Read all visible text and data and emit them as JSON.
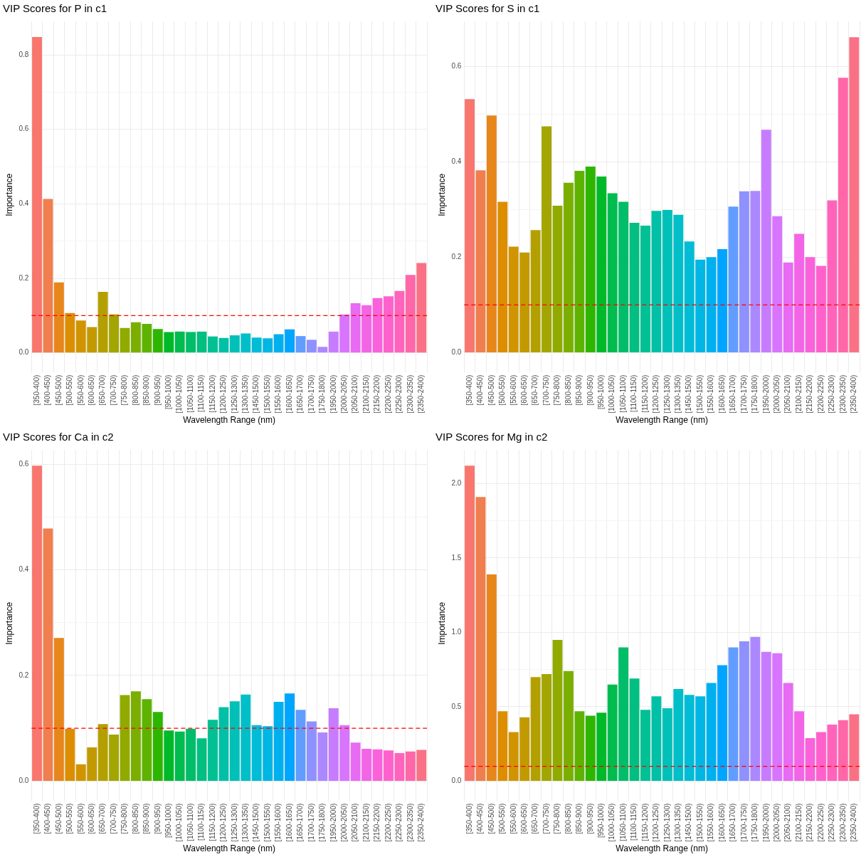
{
  "chart_data": [
    {
      "type": "bar",
      "title": "VIP Scores for P in c1",
      "xlabel": "Wavelength Range (nm)",
      "ylabel": "Importance",
      "categories": [
        "[350-400)",
        "[400-450)",
        "[450-500)",
        "[500-550)",
        "[550-600)",
        "[600-650)",
        "[650-700)",
        "[700-750)",
        "[750-800)",
        "[800-850)",
        "[850-900)",
        "[900-950)",
        "[950-1000)",
        "[1000-1050)",
        "[1050-1100)",
        "[1100-1150)",
        "[1150-1200)",
        "[1200-1250)",
        "[1250-1300)",
        "[1300-1350)",
        "[1450-1500)",
        "[1500-1550)",
        "[1550-1600)",
        "[1600-1650)",
        "[1650-1700)",
        "[1700-1750)",
        "[1750-1800)",
        "[1950-2000)",
        "[2000-2050)",
        "[2050-2100)",
        "[2100-2150)",
        "[2150-2200)",
        "[2200-2250)",
        "[2250-2300)",
        "[2300-2350)",
        "[2350-2400)"
      ],
      "values": [
        0.848,
        0.413,
        0.189,
        0.107,
        0.087,
        0.069,
        0.164,
        0.103,
        0.067,
        0.082,
        0.078,
        0.064,
        0.056,
        0.057,
        0.056,
        0.057,
        0.044,
        0.04,
        0.047,
        0.052,
        0.041,
        0.039,
        0.05,
        0.063,
        0.045,
        0.035,
        0.016,
        0.057,
        0.103,
        0.133,
        0.128,
        0.147,
        0.152,
        0.166,
        0.209,
        0.241
      ],
      "colors": [
        "#F8766D",
        "#F07E4E",
        "#E7861B",
        "#DC8E00",
        "#D09400",
        "#C29A00",
        "#B3A000",
        "#A3A500",
        "#90AA00",
        "#7AAF00",
        "#5EB300",
        "#2DB600",
        "#00B928",
        "#00BB4E",
        "#00BD69",
        "#00BF80",
        "#00C094",
        "#00C0A7",
        "#00C0B8",
        "#00BFC8",
        "#00BCD6",
        "#00B6E3",
        "#00B0EE",
        "#00A5FF",
        "#619CFF",
        "#8F91FF",
        "#AC88FF",
        "#C77CFF",
        "#D874FD",
        "#E76BF3",
        "#F265E7",
        "#FA62DB",
        "#FF61CC",
        "#FF63BC",
        "#FF67A8",
        "#FA7186"
      ],
      "ylim": [
        -0.042,
        0.89
      ],
      "yticks": [
        {
          "value": 0,
          "label": "0.0"
        },
        {
          "value": 0.1,
          "label": null
        },
        {
          "value": 0.2,
          "label": "0.2"
        },
        {
          "value": 0.3,
          "label": null
        },
        {
          "value": 0.4,
          "label": "0.4"
        },
        {
          "value": 0.5,
          "label": null
        },
        {
          "value": 0.6,
          "label": "0.6"
        },
        {
          "value": 0.7,
          "label": null
        },
        {
          "value": 0.8,
          "label": "0.8"
        }
      ],
      "grid": true,
      "ref_lines": [
        {
          "axis": "y",
          "value": 0.1,
          "color": "#ff0000",
          "line_style": "dashed"
        }
      ]
    },
    {
      "type": "bar",
      "title": "VIP Scores for S in c1",
      "xlabel": "Wavelength Range (nm)",
      "ylabel": "Importance",
      "categories": [
        "[350-400)",
        "[400-450)",
        "[450-500)",
        "[500-550)",
        "[550-600)",
        "[600-650)",
        "[650-700)",
        "[700-750)",
        "[750-800)",
        "[800-850)",
        "[850-900)",
        "[900-950)",
        "[950-1000)",
        "[1000-1050)",
        "[1050-1100)",
        "[1100-1150)",
        "[1150-1200)",
        "[1200-1250)",
        "[1250-1300)",
        "[1300-1350)",
        "[1450-1500)",
        "[1500-1550)",
        "[1550-1600)",
        "[1600-1650)",
        "[1650-1700)",
        "[1700-1750)",
        "[1750-1800)",
        "[1950-2000)",
        "[2000-2050)",
        "[2050-2100)",
        "[2100-2150)",
        "[2150-2200)",
        "[2200-2250)",
        "[2250-2300)",
        "[2300-2350)",
        "[2350-2400)"
      ],
      "values": [
        0.531,
        0.382,
        0.497,
        0.316,
        0.222,
        0.21,
        0.257,
        0.474,
        0.308,
        0.356,
        0.381,
        0.39,
        0.369,
        0.334,
        0.316,
        0.272,
        0.266,
        0.297,
        0.299,
        0.289,
        0.233,
        0.195,
        0.2,
        0.217,
        0.306,
        0.338,
        0.339,
        0.467,
        0.286,
        0.189,
        0.249,
        0.2,
        0.182,
        0.319,
        0.576,
        0.661
      ],
      "colors": [
        "#F8766D",
        "#F07E4E",
        "#E7861B",
        "#DC8E00",
        "#D09400",
        "#C29A00",
        "#B3A000",
        "#A3A500",
        "#90AA00",
        "#7AAF00",
        "#5EB300",
        "#2DB600",
        "#00B928",
        "#00BB4E",
        "#00BD69",
        "#00BF80",
        "#00C094",
        "#00C0A7",
        "#00C0B8",
        "#00BFC8",
        "#00BCD6",
        "#00B6E3",
        "#00B0EE",
        "#00A5FF",
        "#619CFF",
        "#8F91FF",
        "#AC88FF",
        "#C77CFF",
        "#D874FD",
        "#E76BF3",
        "#F265E7",
        "#FA62DB",
        "#FF61CC",
        "#FF63BC",
        "#FF67A8",
        "#FA7186"
      ],
      "ylim": [
        -0.033,
        0.694
      ],
      "yticks": [
        {
          "value": 0,
          "label": "0.0"
        },
        {
          "value": 0.1,
          "label": null
        },
        {
          "value": 0.2,
          "label": "0.2"
        },
        {
          "value": 0.3,
          "label": null
        },
        {
          "value": 0.4,
          "label": "0.4"
        },
        {
          "value": 0.5,
          "label": null
        },
        {
          "value": 0.6,
          "label": "0.6"
        }
      ],
      "grid": true,
      "ref_lines": [
        {
          "axis": "y",
          "value": 0.1,
          "color": "#ff0000",
          "line_style": "dashed"
        }
      ]
    },
    {
      "type": "bar",
      "title": "VIP Scores for Ca in c2",
      "xlabel": "Wavelength Range (nm)",
      "ylabel": "Importance",
      "categories": [
        "[350-400)",
        "[400-450)",
        "[450-500)",
        "[500-550)",
        "[550-600)",
        "[600-650)",
        "[650-700)",
        "[700-750)",
        "[750-800)",
        "[800-850)",
        "[850-900)",
        "[900-950)",
        "[950-1000)",
        "[1000-1050)",
        "[1050-1100)",
        "[1100-1150)",
        "[1150-1200)",
        "[1200-1250)",
        "[1250-1300)",
        "[1300-1350)",
        "[1450-1500)",
        "[1500-1550)",
        "[1550-1600)",
        "[1600-1650)",
        "[1650-1700)",
        "[1700-1750)",
        "[1750-1800)",
        "[1950-2000)",
        "[2000-2050)",
        "[2050-2100)",
        "[2100-2150)",
        "[2150-2200)",
        "[2200-2250)",
        "[2250-2300)",
        "[2300-2350)",
        "[2350-2400)"
      ],
      "values": [
        0.597,
        0.478,
        0.271,
        0.099,
        0.032,
        0.064,
        0.108,
        0.088,
        0.163,
        0.17,
        0.155,
        0.131,
        0.096,
        0.094,
        0.099,
        0.081,
        0.116,
        0.14,
        0.151,
        0.164,
        0.106,
        0.104,
        0.15,
        0.166,
        0.135,
        0.113,
        0.092,
        0.138,
        0.106,
        0.073,
        0.061,
        0.06,
        0.058,
        0.053,
        0.056,
        0.059
      ],
      "colors": [
        "#F8766D",
        "#F07E4E",
        "#E7861B",
        "#DC8E00",
        "#D09400",
        "#C29A00",
        "#B3A000",
        "#A3A500",
        "#90AA00",
        "#7AAF00",
        "#5EB300",
        "#2DB600",
        "#00B928",
        "#00BB4E",
        "#00BD69",
        "#00BF80",
        "#00C094",
        "#00C0A7",
        "#00C0B8",
        "#00BFC8",
        "#00BCD6",
        "#00B6E3",
        "#00B0EE",
        "#00A5FF",
        "#619CFF",
        "#8F91FF",
        "#AC88FF",
        "#C77CFF",
        "#D874FD",
        "#E76BF3",
        "#F265E7",
        "#FA62DB",
        "#FF61CC",
        "#FF63BC",
        "#FF67A8",
        "#FA7186"
      ],
      "ylim": [
        -0.03,
        0.627
      ],
      "yticks": [
        {
          "value": 0,
          "label": "0.0"
        },
        {
          "value": 0.1,
          "label": null
        },
        {
          "value": 0.2,
          "label": "0.2"
        },
        {
          "value": 0.3,
          "label": null
        },
        {
          "value": 0.4,
          "label": "0.4"
        },
        {
          "value": 0.5,
          "label": null
        },
        {
          "value": 0.6,
          "label": "0.6"
        }
      ],
      "grid": true,
      "ref_lines": [
        {
          "axis": "y",
          "value": 0.1,
          "color": "#ff0000",
          "line_style": "dashed"
        }
      ]
    },
    {
      "type": "bar",
      "title": "VIP Scores for Mg in c2",
      "xlabel": "Wavelength Range (nm)",
      "ylabel": "Importance",
      "categories": [
        "[350-400)",
        "[400-450)",
        "[450-500)",
        "[500-550)",
        "[550-600)",
        "[600-650)",
        "[650-700)",
        "[700-750)",
        "[750-800)",
        "[800-850)",
        "[850-900)",
        "[900-950)",
        "[950-1000)",
        "[1000-1050)",
        "[1050-1100)",
        "[1100-1150)",
        "[1150-1200)",
        "[1200-1250)",
        "[1250-1300)",
        "[1300-1350)",
        "[1450-1500)",
        "[1500-1550)",
        "[1550-1600)",
        "[1600-1650)",
        "[1650-1700)",
        "[1700-1750)",
        "[1750-1800)",
        "[1950-2000)",
        "[2000-2050)",
        "[2050-2100)",
        "[2100-2150)",
        "[2150-2200)",
        "[2200-2250)",
        "[2250-2300)",
        "[2300-2350)",
        "[2350-2400)"
      ],
      "values": [
        2.12,
        1.91,
        1.39,
        0.47,
        0.33,
        0.43,
        0.7,
        0.72,
        0.95,
        0.74,
        0.47,
        0.44,
        0.46,
        0.65,
        0.9,
        0.69,
        0.48,
        0.57,
        0.49,
        0.62,
        0.58,
        0.57,
        0.66,
        0.78,
        0.9,
        0.94,
        0.97,
        0.87,
        0.86,
        0.66,
        0.47,
        0.29,
        0.33,
        0.38,
        0.41,
        0.45
      ],
      "colors": [
        "#F8766D",
        "#F07E4E",
        "#E7861B",
        "#DC8E00",
        "#D09400",
        "#C29A00",
        "#B3A000",
        "#A3A500",
        "#90AA00",
        "#7AAF00",
        "#5EB300",
        "#2DB600",
        "#00B928",
        "#00BB4E",
        "#00BD69",
        "#00BF80",
        "#00C094",
        "#00C0A7",
        "#00C0B8",
        "#00BFC8",
        "#00BCD6",
        "#00B6E3",
        "#00B0EE",
        "#00A5FF",
        "#619CFF",
        "#8F91FF",
        "#AC88FF",
        "#C77CFF",
        "#D874FD",
        "#E76BF3",
        "#F265E7",
        "#FA62DB",
        "#FF61CC",
        "#FF63BC",
        "#FF67A8",
        "#FA7186"
      ],
      "ylim": [
        -0.106,
        2.227
      ],
      "yticks": [
        {
          "value": 0,
          "label": "0.0"
        },
        {
          "value": 0.25,
          "label": null
        },
        {
          "value": 0.5,
          "label": "0.5"
        },
        {
          "value": 0.75,
          "label": null
        },
        {
          "value": 1,
          "label": "1.0"
        },
        {
          "value": 1.25,
          "label": null
        },
        {
          "value": 1.5,
          "label": "1.5"
        },
        {
          "value": 1.75,
          "label": null
        },
        {
          "value": 2,
          "label": "2.0"
        }
      ],
      "grid": true,
      "ref_lines": [
        {
          "axis": "y",
          "value": 0.1,
          "color": "#ff0000",
          "line_style": "dashed"
        }
      ]
    }
  ]
}
